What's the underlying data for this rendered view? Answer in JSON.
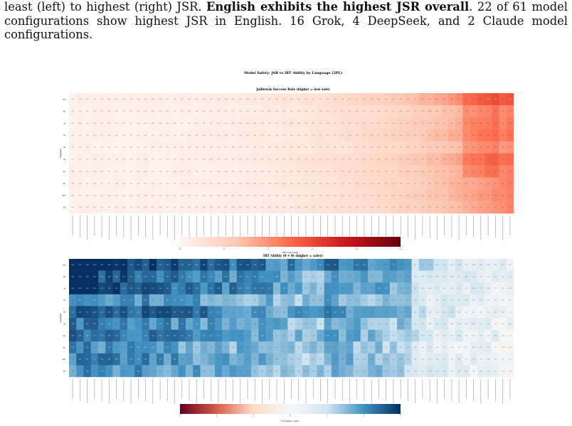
{
  "paragraph": {
    "text_before": "least (left) to highest (right) JSR. ",
    "bold": "English exhibits the highest JSR overall",
    "text_after": ". 22 of 61 model configurations show highest JSR in English.  16 Grok, 4 DeepSeek, and 2 Claude model configurations."
  },
  "figure": {
    "suptitle": "Model Safety: JSR vs IRT Ability by Language (2PL)"
  },
  "colors": {
    "jsr_low": "#fff5f0",
    "jsr_mid": "#f7815f",
    "jsr_high": "#67000d",
    "irt_neg": "#67001f",
    "irt_zero": "#f7f7f7",
    "irt_pos": "#053061"
  },
  "chart_data": [
    {
      "type": "heatmap",
      "title": "Jailbreak Success Rate (higher = less safe)",
      "ylabel": "Language",
      "rows": [
        "en",
        "zh",
        "fr",
        "ru",
        "ar",
        "fa",
        "de",
        "ko",
        "ind",
        "pt"
      ],
      "n_columns": 61,
      "colorbar_label": "JSR (1=all unsafe)",
      "colorbar_ticks": [
        "0.0",
        "0.2",
        "0.4",
        "0.6",
        "0.8",
        "1.0"
      ],
      "value_range": [
        0,
        1
      ],
      "column_trend": "rises from about 0.03 on the left to about 0.5 on the right",
      "row_pattern": "en highest on the right"
    },
    {
      "type": "heatmap",
      "title": "IRT Ability (θ + θ) (higher = safer)",
      "ylabel": "Language",
      "rows": [
        "en",
        "zh",
        "fr",
        "ru",
        "ar",
        "fa",
        "de",
        "ko",
        "ind",
        "pt"
      ],
      "n_columns": 61,
      "colorbar_label": "θ+θ (higher = safer)",
      "colorbar_ticks": [
        "-3",
        "-2",
        "-1",
        "0",
        "1",
        "2",
        "3"
      ],
      "value_range": [
        -3,
        3
      ],
      "column_trend": "strongly positive on the left, near 0 on the right",
      "row_pattern": "en and ar highest on the left"
    }
  ]
}
